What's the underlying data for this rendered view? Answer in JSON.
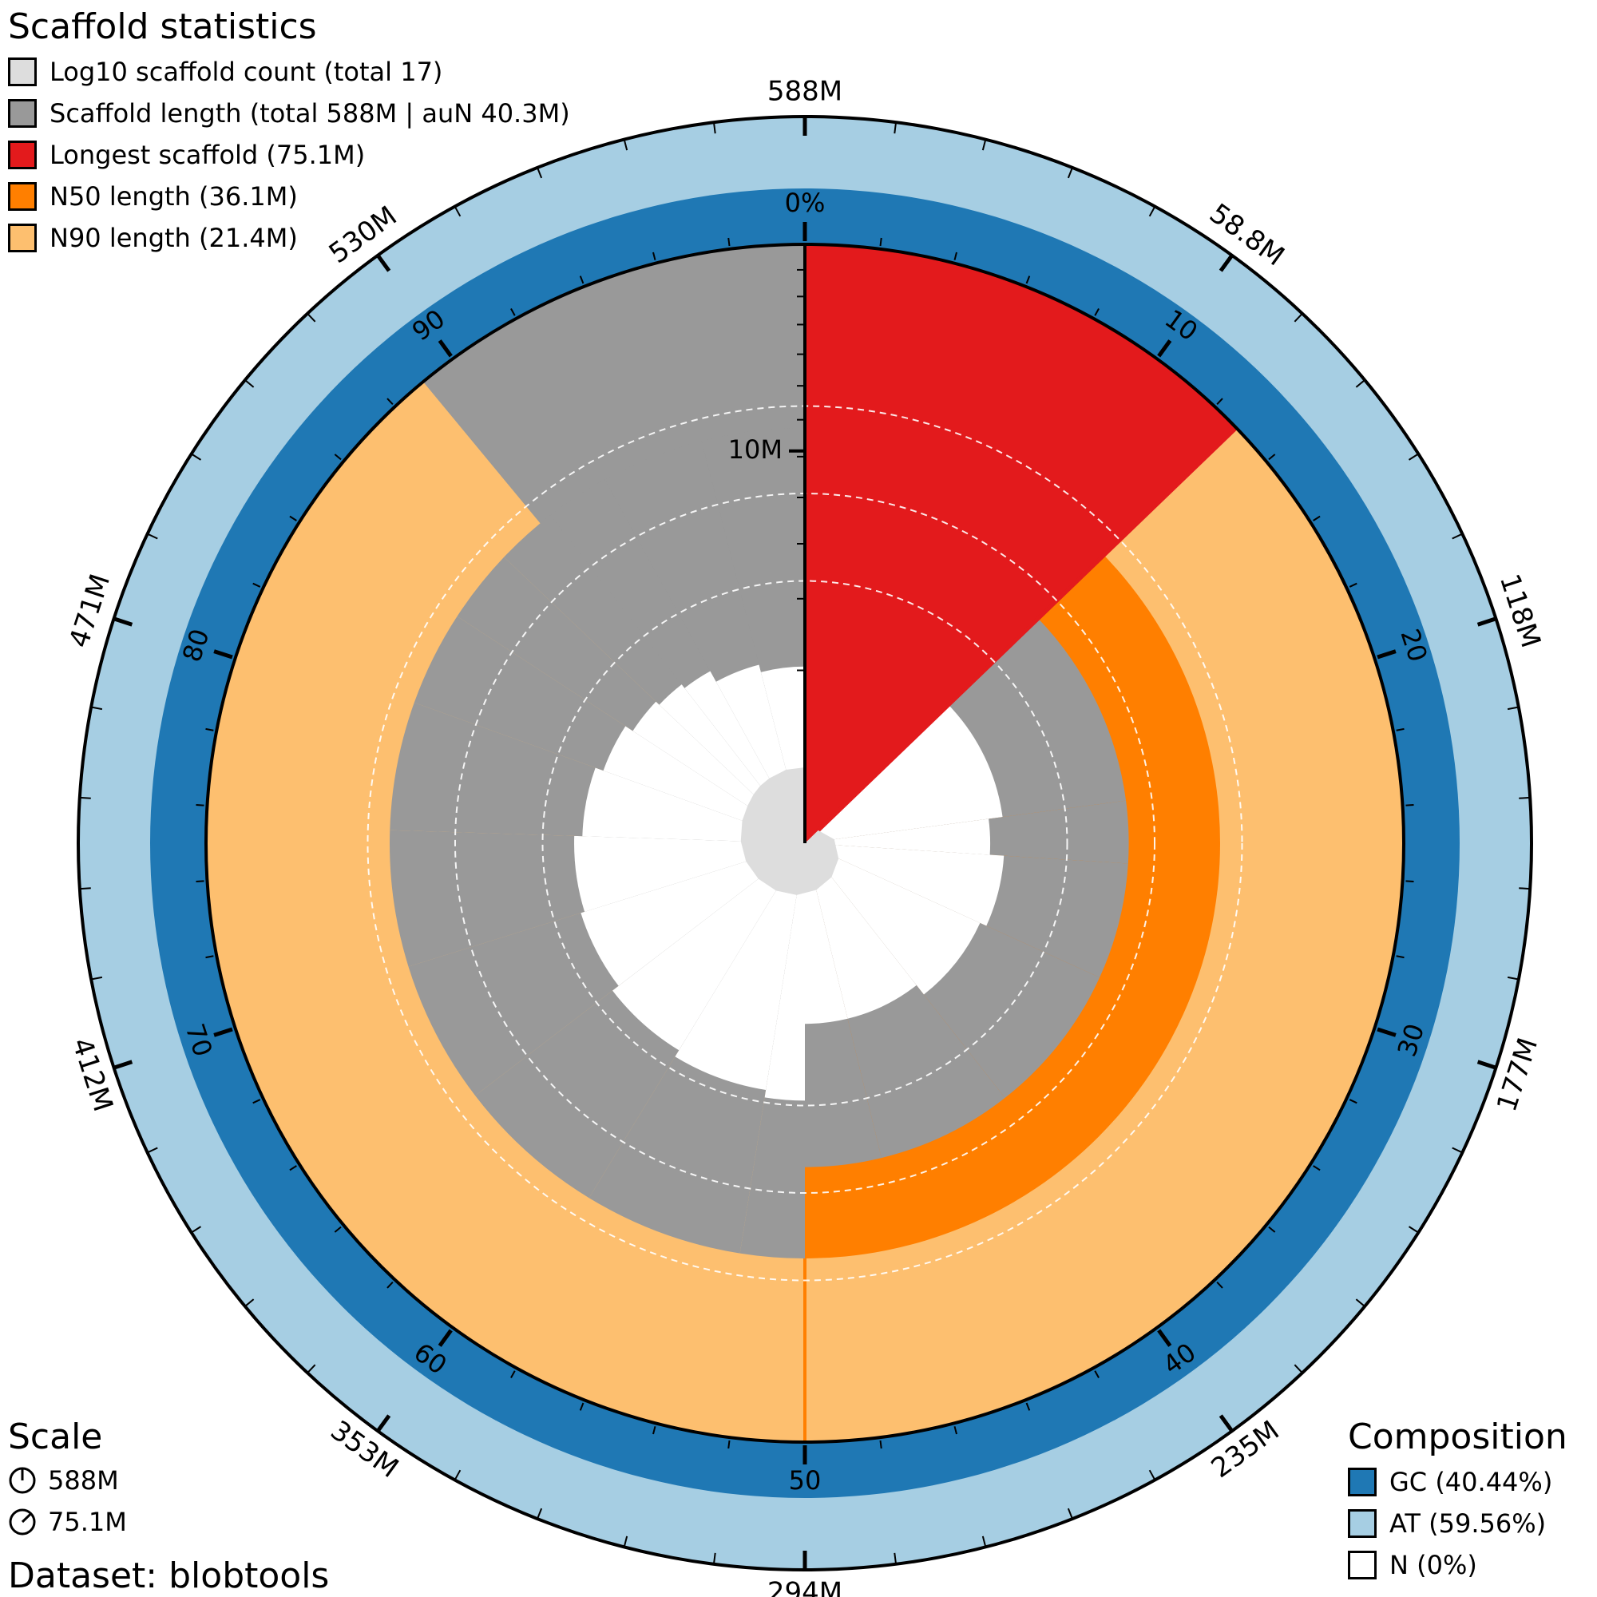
{
  "page": {
    "title": "Scaffold statistics",
    "scale_title": "Scale",
    "composition_title": "Composition",
    "dataset_label": "Dataset: blobtools"
  },
  "legend": [
    {
      "label": "Log10 scaffold count (total 17)",
      "color": "#dddddd"
    },
    {
      "label": "Scaffold length (total 588M | auN 40.3M)",
      "color": "#999999"
    },
    {
      "label": "Longest scaffold (75.1M)",
      "color": "#e31a1c"
    },
    {
      "label": "N50 length (36.1M)",
      "color": "#ff7f00"
    },
    {
      "label": "N90 length (21.4M)",
      "color": "#fdbf6f"
    }
  ],
  "scale": [
    {
      "label": "588M",
      "icon": "circle-full-scale-icon"
    },
    {
      "label": "75.1M",
      "icon": "circle-longest-scale-icon"
    }
  ],
  "composition": [
    {
      "label": "GC (40.44%)",
      "color": "#1f78b4"
    },
    {
      "label": "AT (59.56%)",
      "color": "#a6cee3"
    },
    {
      "label": "N (0%)",
      "color": "#ffffff"
    }
  ],
  "chart_data": {
    "type": "snail",
    "total_length": 588,
    "scaffold_count": 17,
    "longest": 75.1,
    "n50": 36.1,
    "n90": 21.4,
    "aun": 40.3,
    "gc_percent": 40.44,
    "at_percent": 59.56,
    "n_percent": 0,
    "radial_axis_label": "10M",
    "outer_tick_labels": [
      "588M",
      "58.8M",
      "118M",
      "177M",
      "235M",
      "294M",
      "353M",
      "412M",
      "471M",
      "530M"
    ],
    "percent_tick_labels": [
      "0%",
      "10",
      "20",
      "30",
      "40",
      "50",
      "60",
      "70",
      "80",
      "90"
    ],
    "n90_percent": 89.0,
    "cumulative_percent": [
      0,
      12.8,
      22.9,
      31.8,
      39.4,
      46.2,
      52.5,
      58.7,
      64.6,
      70.2,
      75.5,
      80.5,
      84.2,
      87.1,
      89.5,
      92.0,
      96.0,
      100
    ],
    "scaffold_length_profile": [
      {
        "percent": 0,
        "length": 75.1
      },
      {
        "percent": 12.8,
        "length": 75.1
      },
      {
        "percent": 12.8,
        "length": 44.0
      },
      {
        "percent": 22.9,
        "length": 44.0
      },
      {
        "percent": 22.9,
        "length": 38.0
      },
      {
        "percent": 26.0,
        "length": 38.0
      },
      {
        "percent": 26.0,
        "length": 44.0
      },
      {
        "percent": 31.8,
        "length": 44.0
      },
      {
        "percent": 31.8,
        "length": 41.0
      },
      {
        "percent": 39.4,
        "length": 41.0
      },
      {
        "percent": 39.4,
        "length": 36.1
      },
      {
        "percent": 46.2,
        "length": 36.1
      },
      {
        "percent": 46.2,
        "length": 36.1
      },
      {
        "percent": 52.5,
        "length": 36.1
      },
      {
        "percent": 52.5,
        "length": 34.0
      },
      {
        "percent": 58.7,
        "length": 34.0
      },
      {
        "percent": 58.7,
        "length": 32.0
      },
      {
        "percent": 64.6,
        "length": 32.0
      },
      {
        "percent": 64.6,
        "length": 30.0
      },
      {
        "percent": 70.2,
        "length": 30.0
      },
      {
        "percent": 70.2,
        "length": 29.0
      },
      {
        "percent": 75.5,
        "length": 29.0
      },
      {
        "percent": 75.5,
        "length": 27.0
      },
      {
        "percent": 80.5,
        "length": 27.0
      },
      {
        "percent": 80.5,
        "length": 25.0
      },
      {
        "percent": 84.2,
        "length": 25.0
      },
      {
        "percent": 84.2,
        "length": 23.0
      },
      {
        "percent": 87.1,
        "length": 23.0
      },
      {
        "percent": 87.1,
        "length": 22.0
      },
      {
        "percent": 89.5,
        "length": 22.0
      },
      {
        "percent": 89.5,
        "length": 21.0
      },
      {
        "percent": 92.0,
        "length": 21.0
      },
      {
        "percent": 92.0,
        "length": 18.5
      },
      {
        "percent": 96.0,
        "length": 18.5
      },
      {
        "percent": 96.0,
        "length": 17.0
      },
      {
        "percent": 100,
        "length": 17.0
      }
    ],
    "log_count_profile": [
      {
        "percent": 0,
        "value": 0.0
      },
      {
        "percent": 12.8,
        "value": 0.3
      },
      {
        "percent": 22.9,
        "value": 0.48
      },
      {
        "percent": 31.8,
        "value": 0.6
      },
      {
        "percent": 39.4,
        "value": 0.7
      },
      {
        "percent": 46.2,
        "value": 0.78
      },
      {
        "percent": 52.5,
        "value": 0.85
      },
      {
        "percent": 58.7,
        "value": 0.9
      },
      {
        "percent": 64.6,
        "value": 0.95
      },
      {
        "percent": 70.2,
        "value": 1.0
      },
      {
        "percent": 75.5,
        "value": 1.04
      },
      {
        "percent": 80.5,
        "value": 1.08
      },
      {
        "percent": 84.2,
        "value": 1.11
      },
      {
        "percent": 87.1,
        "value": 1.15
      },
      {
        "percent": 89.5,
        "value": 1.18
      },
      {
        "percent": 92.0,
        "value": 1.2
      },
      {
        "percent": 96.0,
        "value": 1.23
      },
      {
        "percent": 100,
        "value": 1.23
      }
    ]
  }
}
